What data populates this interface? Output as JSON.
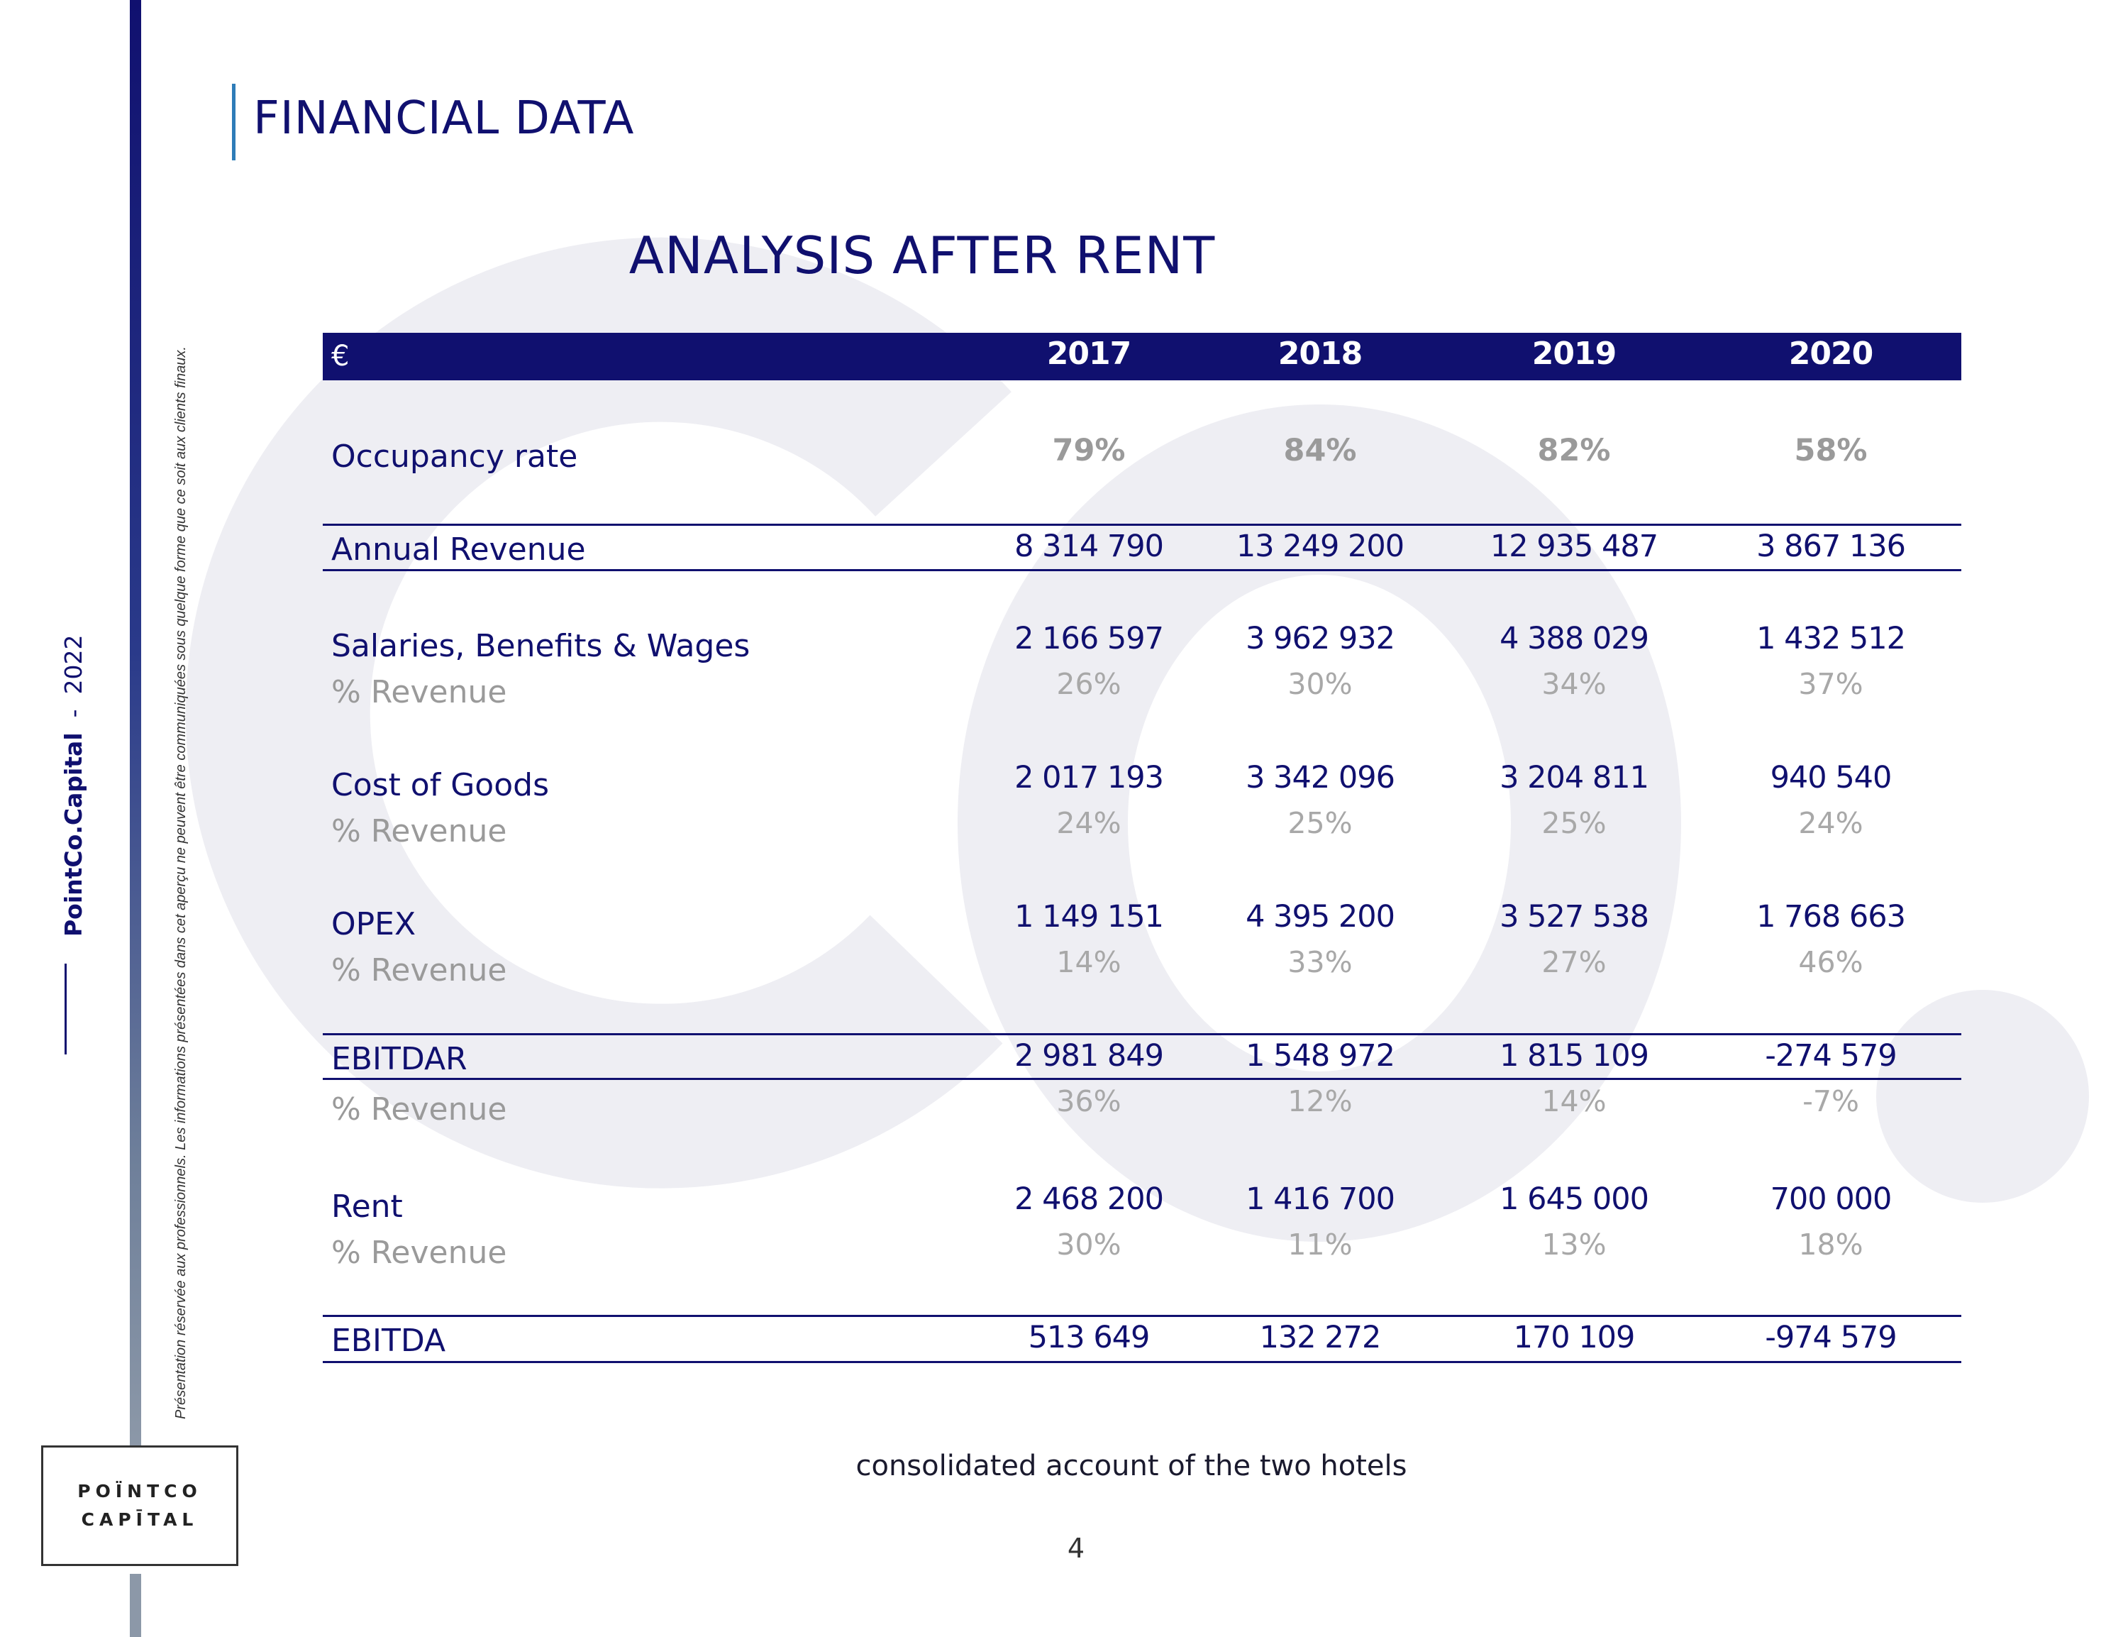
{
  "sidebar": {
    "disclaimer": "Présentation réservée aux professionnels. Les informations présentées dans cet aperçu ne peuvent être communiquées sous quelque forme que ce soit aux clients finaux.",
    "brand": "PointCo.Capital",
    "separator": "-",
    "year": "2022",
    "logo_line1": "POÏNTCO",
    "logo_line2": "CAPĪTAL"
  },
  "header": {
    "section_title": "FINANCIAL DATA",
    "page_title": "ANALYSIS AFTER RENT"
  },
  "table": {
    "unit": "€",
    "years": [
      "2017",
      "2018",
      "2019",
      "2020"
    ],
    "occupancy": {
      "label": "Occupancy rate",
      "values": [
        "79%",
        "84%",
        "82%",
        "58%"
      ]
    },
    "annual_revenue": {
      "label": "Annual Revenue",
      "values": [
        "8 314 790",
        "13 249 200",
        "12 935 487",
        "3 867 136"
      ]
    },
    "salaries": {
      "label": "Salaries, Benefits & Wages",
      "values": [
        "2 166 597",
        "3 962 932",
        "4 388 029",
        "1 432 512"
      ],
      "pct_label": "% Revenue",
      "pct": [
        "26%",
        "30%",
        "34%",
        "37%"
      ]
    },
    "cogs": {
      "label": "Cost of Goods",
      "values": [
        "2 017 193",
        "3 342 096",
        "3 204 811",
        "940 540"
      ],
      "pct_label": "% Revenue",
      "pct": [
        "24%",
        "25%",
        "25%",
        "24%"
      ]
    },
    "opex": {
      "label": "OPEX",
      "values": [
        "1 149 151",
        "4 395 200",
        "3 527 538",
        "1 768 663"
      ],
      "pct_label": "% Revenue",
      "pct": [
        "14%",
        "33%",
        "27%",
        "46%"
      ]
    },
    "ebitdar": {
      "label": "EBITDAR",
      "values": [
        "2 981 849",
        "1 548 972",
        "1 815 109",
        "-274 579"
      ],
      "pct_label": "% Revenue",
      "pct": [
        "36%",
        "12%",
        "14%",
        "-7%"
      ]
    },
    "rent": {
      "label": "Rent",
      "values": [
        "2 468 200",
        "1 416 700",
        "1 645 000",
        "700 000"
      ],
      "pct_label": "% Revenue",
      "pct": [
        "30%",
        "11%",
        "13%",
        "18%"
      ]
    },
    "ebitda": {
      "label": "EBITDA",
      "values": [
        "513 649",
        "132 272",
        "170 109",
        "-974 579"
      ]
    }
  },
  "footer": {
    "note": "consolidated account of the two hotels",
    "page_number": "4"
  },
  "colors": {
    "navy": "#10106f",
    "accent": "#2e7cb8",
    "muted": "#a8a8a8",
    "watermark": "#eeeef3"
  }
}
